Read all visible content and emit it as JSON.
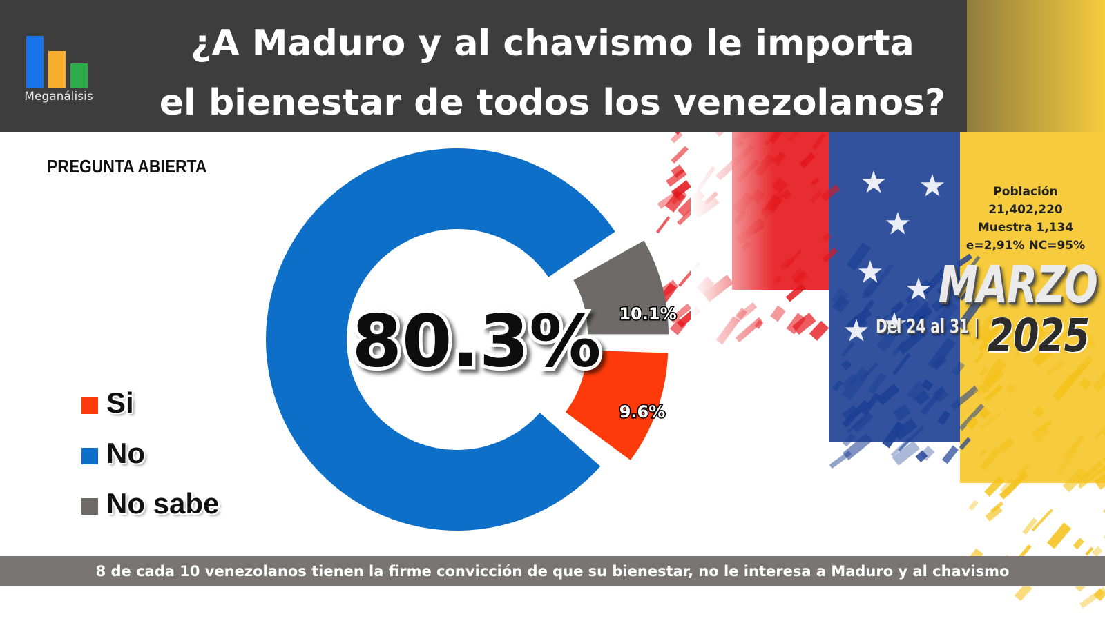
{
  "header": {
    "title_line1": "¿A Maduro y al chavismo le importa",
    "title_line2": "el bienestar de todos los venezolanos?",
    "logo_text": "Meganálisis",
    "logo_colors": [
      "#1a73e8",
      "#f6ae2d",
      "#2eaa4a"
    ]
  },
  "question_tag": "PREGUNTA ABIERTA",
  "chart_data": {
    "type": "pie",
    "variant": "donut-exploded",
    "categories": [
      "Si",
      "No",
      "No sabe"
    ],
    "values": [
      9.6,
      80.3,
      10.1
    ],
    "value_labels": [
      "9.6%",
      "80.3%",
      "10.1%"
    ],
    "colors": [
      "#ff3a0a",
      "#0d6fc7",
      "#6f6a6a"
    ],
    "center_label": "80.3%",
    "legend_position": "left"
  },
  "legend": [
    {
      "label": "Si",
      "color": "#ff3a0a"
    },
    {
      "label": "No",
      "color": "#0d6fc7"
    },
    {
      "label": "No sabe",
      "color": "#6f6a6a"
    }
  ],
  "survey_info": {
    "line1": "Población",
    "line2": "21,402,220",
    "line3": "Muestra 1,134",
    "line4": "e=2,91%  NC=95%"
  },
  "period": {
    "month": "MARZO",
    "dates": "Del 24 al 31 |",
    "year": "2025"
  },
  "footer": {
    "text": "8 de cada 10 venezolanos tienen la firme convicción de que su bienestar, no le interesa a Maduro y al chavismo"
  },
  "flag_colors": [
    "#e4161b",
    "#1c3f94",
    "#f4c21c"
  ]
}
